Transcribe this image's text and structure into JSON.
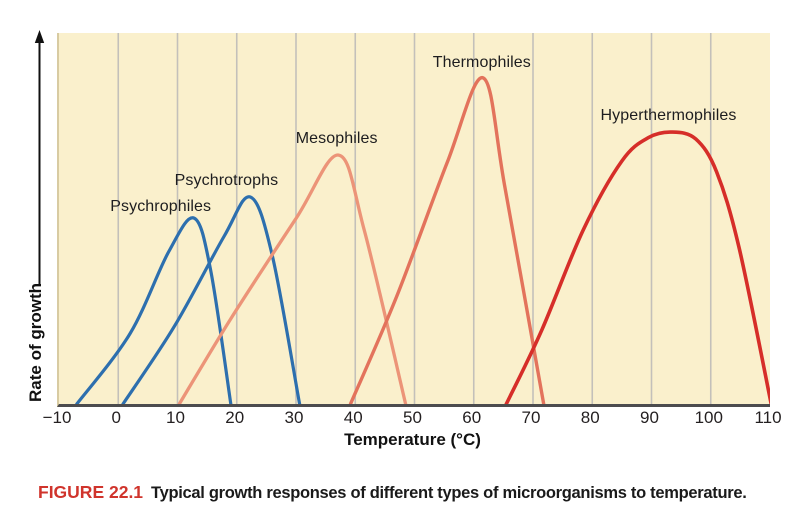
{
  "figure": {
    "label": "FIGURE 22.1",
    "caption": "Typical growth responses of different types of microorganisms to temperature.",
    "label_color": "#d0342c"
  },
  "axes": {
    "x_title": "Temperature (°C)",
    "y_title": "Rate of growth",
    "x_tick_labels": [
      "−10",
      "0",
      "10",
      "20",
      "30",
      "40",
      "50",
      "60",
      "70",
      "80",
      "90",
      "100",
      "110"
    ],
    "x_tick_values": [
      -10,
      0,
      10,
      20,
      30,
      40,
      50,
      60,
      70,
      80,
      90,
      100,
      110
    ]
  },
  "style": {
    "plot_bg": "#faf0cc",
    "gridline_color": "#c3c0ba",
    "axis_color": "#4c4c4e",
    "label_color": "#1d1d1f"
  },
  "chart_data": {
    "type": "line",
    "title": "",
    "xlabel": "Temperature (°C)",
    "ylabel": "Rate of growth",
    "xlim": [
      -10,
      110
    ],
    "ylim": [
      0,
      1
    ],
    "grid": "vertical",
    "gridline_values": [
      0,
      10,
      20,
      30,
      40,
      50,
      60,
      70,
      80,
      90,
      100
    ],
    "legend": "inline-labels",
    "series": [
      {
        "name": "Psychrophiles",
        "color": "#2d6fae",
        "stroke_width": 3.2,
        "optimum_c": 12.8,
        "range_c": [
          -7,
          19
        ],
        "peak_relative_rate": 0.5,
        "points": [
          [
            -7,
            0
          ],
          [
            2,
            0.19
          ],
          [
            8.5,
            0.41
          ],
          [
            12.8,
            0.501
          ],
          [
            15.6,
            0.36
          ],
          [
            19,
            0
          ]
        ],
        "label_anchor": [
          7.5,
          0.53
        ]
      },
      {
        "name": "Psychrotrophs",
        "color": "#2d6fae",
        "stroke_width": 3.2,
        "optimum_c": 22.3,
        "range_c": [
          0.8,
          30.6
        ],
        "peak_relative_rate": 0.56,
        "points": [
          [
            0.8,
            0
          ],
          [
            9.5,
            0.21
          ],
          [
            17.8,
            0.45
          ],
          [
            22.3,
            0.558
          ],
          [
            26,
            0.4
          ],
          [
            30.6,
            0
          ]
        ],
        "label_anchor": [
          18.6,
          0.6
        ]
      },
      {
        "name": "Mesophiles",
        "color": "#ec9478",
        "stroke_width": 3.3,
        "optimum_c": 37.2,
        "range_c": [
          10.3,
          48.5
        ],
        "peak_relative_rate": 0.67,
        "points": [
          [
            10.3,
            0
          ],
          [
            19,
            0.23
          ],
          [
            30,
            0.5
          ],
          [
            37.2,
            0.671
          ],
          [
            41.5,
            0.47
          ],
          [
            48.5,
            0
          ]
        ],
        "label_anchor": [
          37.2,
          0.715
        ]
      },
      {
        "name": "Thermophiles",
        "color": "#e3735c",
        "stroke_width": 3.4,
        "optimum_c": 61.6,
        "range_c": [
          39.2,
          71.8
        ],
        "peak_relative_rate": 0.88,
        "points": [
          [
            39.2,
            0
          ],
          [
            47,
            0.29
          ],
          [
            55.5,
            0.65
          ],
          [
            61.6,
            0.879
          ],
          [
            65.3,
            0.58
          ],
          [
            71.8,
            0
          ]
        ],
        "label_anchor": [
          61.7,
          0.918
        ]
      },
      {
        "name": "Hyperthermophiles",
        "color": "#d62e29",
        "stroke_width": 3.6,
        "optimum_c": 93.5,
        "range_c": [
          65.5,
          110
        ],
        "peak_relative_rate": 0.73,
        "points": [
          [
            65.5,
            0
          ],
          [
            71.5,
            0.2
          ],
          [
            78.5,
            0.47
          ],
          [
            85,
            0.655
          ],
          [
            89.5,
            0.718
          ],
          [
            93.5,
            0.733
          ],
          [
            97.5,
            0.714
          ],
          [
            101,
            0.625
          ],
          [
            104.8,
            0.42
          ],
          [
            110.2,
            0
          ]
        ],
        "label_anchor": [
          93.2,
          0.775
        ]
      }
    ]
  }
}
